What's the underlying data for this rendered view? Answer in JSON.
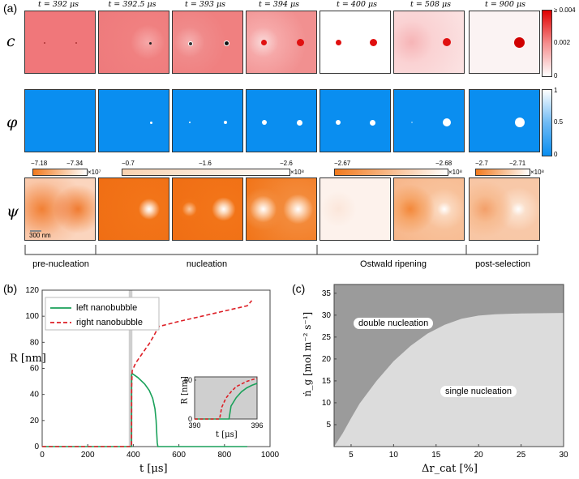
{
  "panel_a": {
    "label": "(a)",
    "times": [
      "t = 392 μs",
      "t = 392.5 μs",
      "t = 393 μs",
      "t = 394 μs",
      "t = 400 μs",
      "t = 508 μs",
      "t = 900 μs"
    ],
    "rows": [
      {
        "symbol": "c"
      },
      {
        "symbol": "φ"
      },
      {
        "symbol": "ψ"
      }
    ],
    "c_colorbar": {
      "top": "≥ 0.004",
      "mid": "0.002",
      "bottom": "0"
    },
    "phi_colorbar": {
      "top": "1",
      "mid": "0.5",
      "bottom": "0"
    },
    "psi_colorbars": [
      {
        "left": "−7.18",
        "right": "−7.34",
        "exp": "×10⁷"
      },
      {
        "left": "−0.7",
        "mid": "−1.6",
        "right": "−2.6",
        "exp": "×10⁸"
      },
      {
        "left": "−2.67",
        "right": "−2.68",
        "exp": "×10⁸"
      },
      {
        "left": "−2.7",
        "right": "−2.71",
        "exp": "×10⁸"
      }
    ],
    "scalebar": "300 nm",
    "phases": [
      "pre-nucleation",
      "nucleation",
      "Ostwald ripening",
      "post-selection"
    ]
  },
  "panel_b": {
    "label": "(b)",
    "xlabel": "t [μs]",
    "ylabel": "R [nm]",
    "legend": [
      "left nanobubble",
      "right nanobubble"
    ],
    "inset": {
      "xlabel": "t [μs]",
      "ylabel": "R [nm]",
      "xticks": [
        "390",
        "396"
      ],
      "yticks": [
        "0",
        "20",
        "40",
        "60"
      ]
    }
  },
  "panel_c": {
    "label": "(c)",
    "xlabel": "Δr_cat [%]",
    "ylabel": "ṅ_g [mol m⁻² s⁻¹]",
    "region_upper": "double nucleation",
    "region_lower": "single nucleation"
  },
  "chart_data": [
    {
      "type": "line",
      "title": "",
      "xlabel": "t [μs]",
      "ylabel": "R [nm]",
      "xlim": [
        0,
        1000
      ],
      "ylim": [
        0,
        120
      ],
      "xticks": [
        0,
        200,
        400,
        600,
        800,
        1000
      ],
      "yticks": [
        0,
        20,
        40,
        60,
        80,
        100,
        120
      ],
      "series": [
        {
          "name": "left nanobubble",
          "color": "#1aa15a",
          "style": "solid",
          "x": [
            0,
            392,
            392.5,
            395,
            420,
            450,
            470,
            485,
            495,
            500,
            503,
            505,
            508,
            900
          ],
          "y": [
            0,
            0,
            55,
            56,
            53,
            48,
            43,
            37,
            29,
            20,
            10,
            3,
            0,
            0
          ]
        },
        {
          "name": "right nanobubble",
          "color": "#dd1f26",
          "style": "dashed",
          "x": [
            0,
            392,
            392.5,
            395,
            410,
            430,
            450,
            470,
            490,
            505,
            510,
            600,
            700,
            800,
            900,
            920
          ],
          "y": [
            0,
            0,
            45,
            58,
            64,
            69,
            74,
            79,
            85,
            90,
            92,
            96,
            100,
            104,
            108,
            112
          ]
        }
      ],
      "highlight_band": [
        380,
        396
      ]
    },
    {
      "type": "line",
      "title": "inset",
      "xlabel": "t [μs]",
      "ylabel": "R [nm]",
      "xlim": [
        390,
        396
      ],
      "ylim": [
        0,
        65
      ],
      "xticks": [
        390,
        396
      ],
      "yticks": [
        0,
        20,
        40,
        60
      ],
      "series": [
        {
          "name": "left nanobubble",
          "color": "#1aa15a",
          "style": "solid",
          "x": [
            390,
            393.3,
            393.5,
            394,
            394.5,
            395,
            395.5,
            396
          ],
          "y": [
            0,
            0,
            20,
            33,
            42,
            48,
            52,
            55
          ]
        },
        {
          "name": "right nanobubble",
          "color": "#dd1f26",
          "style": "dashed",
          "x": [
            390,
            392.4,
            392.6,
            393,
            393.5,
            394,
            395,
            396
          ],
          "y": [
            0,
            0,
            18,
            32,
            42,
            50,
            58,
            63
          ]
        }
      ]
    },
    {
      "type": "area",
      "title": "",
      "xlabel": "Δr_cat [%]",
      "ylabel": "ṅ_g [mol m⁻² s⁻¹]",
      "xlim": [
        3,
        30
      ],
      "ylim": [
        0,
        37
      ],
      "xticks": [
        5,
        10,
        15,
        20,
        25,
        30
      ],
      "yticks": [
        5,
        10,
        15,
        20,
        25,
        30,
        35
      ],
      "boundary": {
        "x": [
          3,
          4,
          5,
          6,
          8,
          10,
          12,
          14,
          16,
          18,
          20,
          22,
          25,
          30
        ],
        "y": [
          0,
          3,
          6.5,
          9.8,
          15,
          19.5,
          23,
          25.8,
          27.8,
          29.2,
          29.9,
          30.2,
          30.4,
          30.5
        ]
      },
      "regions": [
        "double nucleation",
        "single nucleation"
      ],
      "colors": {
        "upper": "#9b9b9b",
        "lower": "#dcdcdc"
      }
    }
  ]
}
